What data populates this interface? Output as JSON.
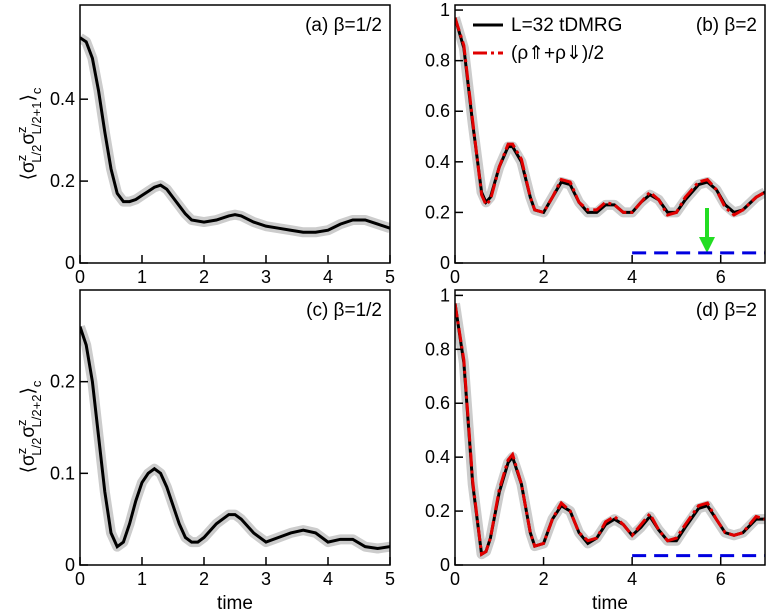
{
  "chart_data": [
    {
      "type": "line",
      "label": "(a) β=1/2",
      "ylabel": [
        "⟨σ",
        "z",
        "L/2",
        "σ",
        "z",
        "L/2+1",
        "⟩",
        "c"
      ],
      "xlim": [
        0,
        5
      ],
      "ylim": [
        0,
        0.63
      ],
      "xticks": [
        0,
        1,
        2,
        3,
        4,
        5
      ],
      "yticks": [
        0,
        0.2,
        0.4
      ],
      "series": [
        {
          "color": "#000000",
          "band_color": "#cccccc",
          "style": "solid",
          "x": [
            0,
            0.1,
            0.2,
            0.3,
            0.4,
            0.5,
            0.6,
            0.7,
            0.8,
            0.9,
            1.0,
            1.1,
            1.2,
            1.3,
            1.4,
            1.5,
            1.6,
            1.7,
            1.8,
            2.0,
            2.2,
            2.4,
            2.5,
            2.6,
            2.8,
            3.0,
            3.2,
            3.4,
            3.6,
            3.8,
            4.0,
            4.2,
            4.4,
            4.6,
            4.8,
            5.0
          ],
          "values": [
            0.55,
            0.54,
            0.5,
            0.42,
            0.32,
            0.23,
            0.17,
            0.15,
            0.15,
            0.155,
            0.165,
            0.175,
            0.185,
            0.19,
            0.18,
            0.16,
            0.14,
            0.12,
            0.105,
            0.1,
            0.105,
            0.115,
            0.118,
            0.115,
            0.1,
            0.09,
            0.085,
            0.08,
            0.075,
            0.075,
            0.08,
            0.095,
            0.105,
            0.105,
            0.095,
            0.085
          ]
        }
      ]
    },
    {
      "type": "line",
      "label": "(b) β=2",
      "legend": "top-left",
      "xlim": [
        0,
        7
      ],
      "ylim": [
        0,
        1.02
      ],
      "xticks": [
        0,
        2,
        4,
        6
      ],
      "yticks": [
        0,
        0.2,
        0.4,
        0.6,
        0.8,
        1
      ],
      "series": [
        {
          "name": "L=32 tDMRG",
          "color": "#000000",
          "band_color": "#cccccc",
          "style": "solid",
          "x": [
            0,
            0.2,
            0.4,
            0.6,
            0.7,
            0.8,
            1.0,
            1.2,
            1.3,
            1.5,
            1.7,
            1.8,
            2.0,
            2.2,
            2.4,
            2.6,
            2.8,
            3.0,
            3.2,
            3.4,
            3.6,
            3.8,
            4.0,
            4.2,
            4.4,
            4.6,
            4.8,
            5.0,
            5.2,
            5.5,
            5.7,
            5.9,
            6.1,
            6.3,
            6.5,
            6.8,
            7.0
          ],
          "values": [
            0.97,
            0.85,
            0.55,
            0.28,
            0.24,
            0.26,
            0.38,
            0.46,
            0.46,
            0.4,
            0.26,
            0.21,
            0.2,
            0.26,
            0.32,
            0.31,
            0.24,
            0.2,
            0.2,
            0.23,
            0.23,
            0.2,
            0.2,
            0.24,
            0.27,
            0.25,
            0.2,
            0.2,
            0.25,
            0.31,
            0.32,
            0.29,
            0.23,
            0.2,
            0.21,
            0.26,
            0.28
          ]
        },
        {
          "name": "(ρ⇑+ρ⇓)/2",
          "color": "#e00000",
          "style": "dashdot",
          "x": [
            0,
            0.2,
            0.4,
            0.6,
            0.7,
            0.8,
            1.0,
            1.2,
            1.3,
            1.5,
            1.7,
            1.8,
            2.0,
            2.2,
            2.4,
            2.6,
            2.8,
            3.0,
            3.2,
            3.4,
            3.6,
            3.8,
            4.0,
            4.2,
            4.4,
            4.6,
            4.8,
            5.0,
            5.2,
            5.5,
            5.7,
            5.9,
            6.1,
            6.3,
            6.5,
            6.8,
            7.0
          ],
          "values": [
            0.97,
            0.86,
            0.56,
            0.27,
            0.23,
            0.25,
            0.38,
            0.47,
            0.47,
            0.41,
            0.26,
            0.21,
            0.2,
            0.26,
            0.33,
            0.32,
            0.24,
            0.21,
            0.21,
            0.24,
            0.23,
            0.2,
            0.2,
            0.24,
            0.28,
            0.25,
            0.19,
            0.2,
            0.26,
            0.32,
            0.33,
            0.29,
            0.22,
            0.19,
            0.21,
            0.26,
            0.28
          ]
        },
        {
          "color": "#0000e0",
          "style": "dashed",
          "x": [
            4,
            7
          ],
          "values": [
            0.04,
            0.04
          ]
        }
      ]
    },
    {
      "type": "line",
      "label": "(c) β=1/2",
      "xlabel": "time",
      "ylabel": [
        "⟨σ",
        "z",
        "L/2",
        "σ",
        "z",
        "L/2+2",
        "⟩",
        "c"
      ],
      "xlim": [
        0,
        5
      ],
      "ylim": [
        0,
        0.3
      ],
      "xticks": [
        0,
        1,
        2,
        3,
        4,
        5
      ],
      "yticks": [
        0,
        0.1,
        0.2
      ],
      "series": [
        {
          "color": "#000000",
          "band_color": "#cccccc",
          "style": "solid",
          "x": [
            0,
            0.1,
            0.2,
            0.3,
            0.4,
            0.5,
            0.6,
            0.7,
            0.8,
            0.9,
            1.0,
            1.1,
            1.2,
            1.3,
            1.4,
            1.5,
            1.6,
            1.7,
            1.8,
            1.9,
            2.0,
            2.2,
            2.4,
            2.5,
            2.6,
            2.8,
            3.0,
            3.2,
            3.4,
            3.6,
            3.8,
            4.0,
            4.2,
            4.4,
            4.6,
            4.8,
            5.0
          ],
          "values": [
            0.26,
            0.24,
            0.2,
            0.14,
            0.08,
            0.035,
            0.02,
            0.025,
            0.045,
            0.07,
            0.09,
            0.1,
            0.105,
            0.1,
            0.085,
            0.065,
            0.045,
            0.03,
            0.025,
            0.025,
            0.03,
            0.045,
            0.055,
            0.055,
            0.05,
            0.035,
            0.025,
            0.03,
            0.035,
            0.038,
            0.035,
            0.025,
            0.028,
            0.028,
            0.02,
            0.018,
            0.02
          ]
        }
      ]
    },
    {
      "type": "line",
      "label": "(d) β=2",
      "xlabel": "time",
      "xlim": [
        0,
        7
      ],
      "ylim": [
        0,
        1.02
      ],
      "xticks": [
        0,
        2,
        4,
        6
      ],
      "yticks": [
        0,
        0.2,
        0.4,
        0.6,
        0.8,
        1
      ],
      "series": [
        {
          "color": "#000000",
          "band_color": "#cccccc",
          "style": "solid",
          "x": [
            0,
            0.2,
            0.4,
            0.6,
            0.7,
            0.8,
            1.0,
            1.2,
            1.3,
            1.5,
            1.7,
            1.8,
            2.0,
            2.2,
            2.4,
            2.6,
            2.8,
            3.0,
            3.2,
            3.4,
            3.6,
            3.8,
            4.0,
            4.2,
            4.4,
            4.6,
            4.8,
            5.0,
            5.2,
            5.5,
            5.7,
            5.9,
            6.1,
            6.3,
            6.5,
            6.8,
            7.0
          ],
          "values": [
            0.97,
            0.75,
            0.3,
            0.04,
            0.05,
            0.1,
            0.27,
            0.38,
            0.4,
            0.3,
            0.12,
            0.07,
            0.08,
            0.17,
            0.22,
            0.2,
            0.12,
            0.08,
            0.1,
            0.15,
            0.17,
            0.15,
            0.11,
            0.14,
            0.18,
            0.13,
            0.09,
            0.09,
            0.14,
            0.21,
            0.22,
            0.17,
            0.12,
            0.11,
            0.12,
            0.17,
            0.17
          ]
        },
        {
          "color": "#e00000",
          "style": "dashdot",
          "x": [
            0,
            0.2,
            0.4,
            0.6,
            0.7,
            0.8,
            1.0,
            1.2,
            1.3,
            1.5,
            1.7,
            1.8,
            2.0,
            2.2,
            2.4,
            2.6,
            2.8,
            3.0,
            3.2,
            3.4,
            3.6,
            3.8,
            4.0,
            4.2,
            4.4,
            4.6,
            4.8,
            5.0,
            5.2,
            5.5,
            5.7,
            5.9,
            6.1,
            6.3,
            6.5,
            6.8,
            7.0
          ],
          "values": [
            0.97,
            0.76,
            0.31,
            0.04,
            0.05,
            0.1,
            0.28,
            0.39,
            0.41,
            0.3,
            0.12,
            0.07,
            0.08,
            0.17,
            0.23,
            0.2,
            0.12,
            0.09,
            0.1,
            0.16,
            0.18,
            0.15,
            0.11,
            0.15,
            0.19,
            0.13,
            0.09,
            0.1,
            0.15,
            0.22,
            0.23,
            0.17,
            0.12,
            0.11,
            0.12,
            0.18,
            0.17
          ]
        },
        {
          "color": "#0000e0",
          "style": "dashed",
          "x": [
            4,
            7
          ],
          "values": [
            0.035,
            0.035
          ]
        }
      ]
    }
  ]
}
